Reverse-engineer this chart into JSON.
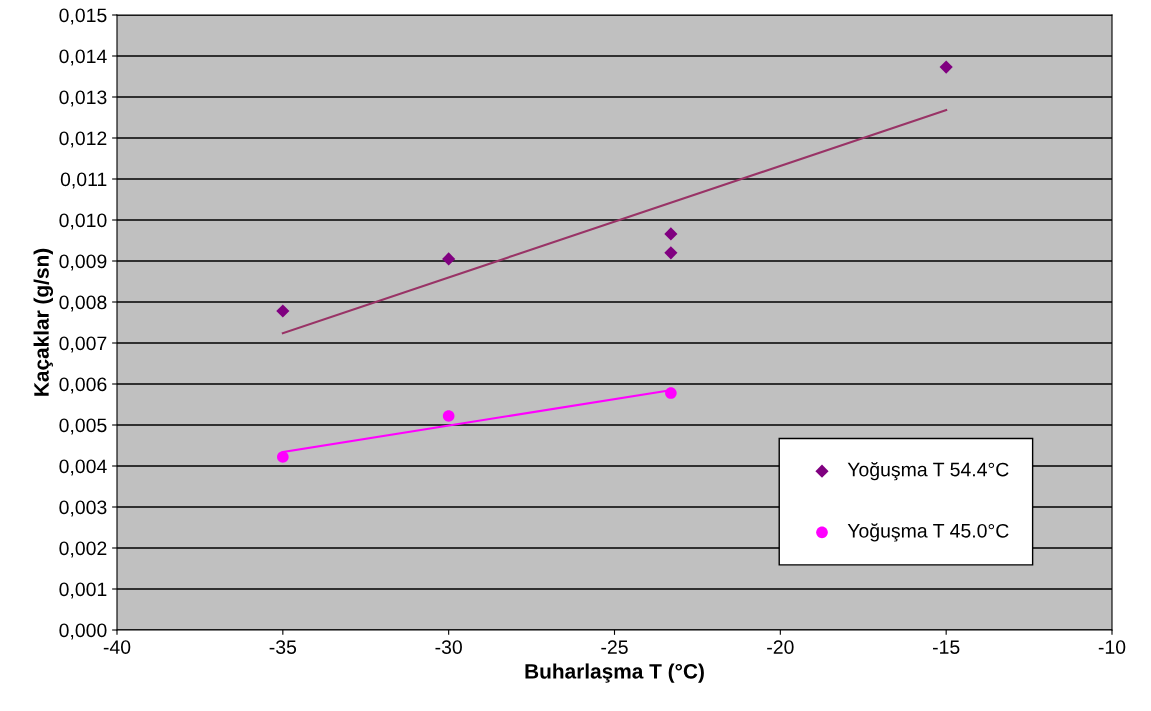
{
  "chart_data": {
    "type": "scatter",
    "xlabel": "Buharlaşma T (°C)",
    "ylabel": "Kaçaklar (g/sn)",
    "xlim": [
      -40,
      -10
    ],
    "xticks": [
      -40,
      -35,
      -30,
      -25,
      -20,
      -15,
      -10
    ],
    "ylim": [
      0,
      0.015
    ],
    "yticks": [
      {
        "value": 0,
        "label": "0,000"
      },
      {
        "value": 0.001,
        "label": "0,001"
      },
      {
        "value": 0.002,
        "label": "0,002"
      },
      {
        "value": 0.003,
        "label": "0,003"
      },
      {
        "value": 0.004,
        "label": "0,004"
      },
      {
        "value": 0.005,
        "label": "0,005"
      },
      {
        "value": 0.006,
        "label": "0,006"
      },
      {
        "value": 0.007,
        "label": "0,007"
      },
      {
        "value": 0.008,
        "label": "0,008"
      },
      {
        "value": 0.009,
        "label": "0,009"
      },
      {
        "value": 0.01,
        "label": "0,010"
      },
      {
        "value": 0.011,
        "label": "0,011"
      },
      {
        "value": 0.012,
        "label": "0,012"
      },
      {
        "value": 0.013,
        "label": "0,013"
      },
      {
        "value": 0.014,
        "label": "0,014"
      },
      {
        "value": 0.015,
        "label": "0,015"
      }
    ],
    "grid": "y",
    "legend": "bottom right",
    "series": [
      {
        "name": "Yoğuşma T 54.4°C",
        "marker": "diamond",
        "color": "#800080",
        "x": [
          -35,
          -30,
          -23.3,
          -23.3,
          -15
        ],
        "values": [
          0.00778,
          0.00905,
          0.00966,
          0.0092,
          0.01373
        ]
      },
      {
        "name": "Yoğuşma T 45.0°C",
        "marker": "circle",
        "color": "#ff00ff",
        "x": [
          -35,
          -30,
          -23.3
        ],
        "values": [
          0.00422,
          0.00522,
          0.00578
        ]
      },
      {
        "type": "line",
        "color": "#993366",
        "x": [
          -35,
          -15
        ],
        "values": [
          0.00724,
          0.01268
        ]
      },
      {
        "type": "line",
        "color": "#ff00ff",
        "x": [
          -35,
          -23.3
        ],
        "values": [
          0.00434,
          0.00585
        ]
      }
    ]
  }
}
